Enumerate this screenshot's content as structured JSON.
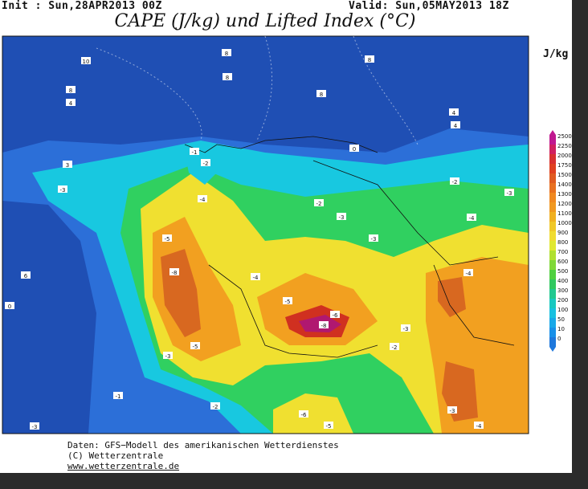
{
  "header": {
    "init": "Init : Sun,28APR2013 00Z",
    "valid": "Valid: Sun,05MAY2013 18Z",
    "title": "CAPE (J/kg) und Lifted Index (°C)"
  },
  "legend": {
    "unit": "J/kg",
    "levels": [
      "2500",
      "2250",
      "2000",
      "1750",
      "1500",
      "1400",
      "1300",
      "1200",
      "1100",
      "1000",
      "900",
      "800",
      "700",
      "600",
      "500",
      "400",
      "300",
      "200",
      "100",
      "50",
      "10",
      "0"
    ]
  },
  "map": {
    "labels": [
      "10",
      "8",
      "4",
      "8",
      "8",
      "8",
      "8",
      "4",
      "4",
      "0",
      "-1",
      "-2",
      "3",
      "-3",
      "-4",
      "-2",
      "-3",
      "-2",
      "-3",
      "-4",
      "-5",
      "-3",
      "-8",
      "-4",
      "-5",
      "-6",
      "-8",
      "-3",
      "-4",
      "-3",
      "-5",
      "-2",
      "-1",
      "-2",
      "-6",
      "-5",
      "-3",
      "-4",
      "-3",
      "0",
      "6"
    ]
  },
  "footer": {
    "lines": [
      "Daten: GFS−Modell des amerikanischen Wetterdienstes",
      "(C) Wetterzentrale",
      "www.wetterzentrale.de"
    ]
  }
}
